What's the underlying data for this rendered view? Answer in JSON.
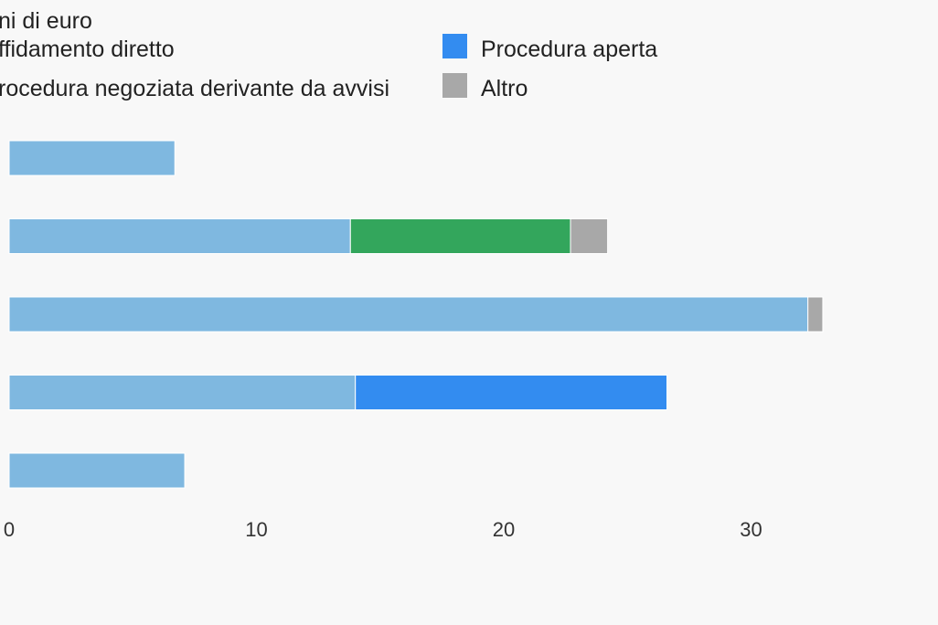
{
  "chart_data": {
    "type": "bar",
    "orientation": "horizontal",
    "stacked": true,
    "title_line": "ni di euro",
    "categories": [
      "",
      "",
      "",
      "",
      ""
    ],
    "series": [
      {
        "name": "Affidamento diretto",
        "legend_label": "ffidamento diretto",
        "color": "#7fb8e0",
        "values": [
          6.7,
          13.8,
          32.3,
          14.0,
          7.1
        ]
      },
      {
        "name": "Procedura negoziata derivante da avvisi",
        "legend_label": "rocedura negoziata derivante da avvisi",
        "color": "#33a65c",
        "values": [
          0,
          8.9,
          0,
          0,
          0
        ]
      },
      {
        "name": "Procedura aperta",
        "legend_label": "Procedura aperta",
        "color": "#338cf0",
        "values": [
          0,
          0,
          0,
          12.6,
          0
        ]
      },
      {
        "name": "Altro",
        "legend_label": "Altro",
        "color": "#a8a8a8",
        "values": [
          0,
          1.5,
          0.6,
          0,
          0
        ]
      }
    ],
    "xlim": [
      0,
      38
    ],
    "xticks": [
      0,
      10,
      20,
      30
    ],
    "xtick_labels": [
      "0",
      "10",
      "20",
      "30"
    ],
    "grid": false,
    "legend_position": "top"
  }
}
